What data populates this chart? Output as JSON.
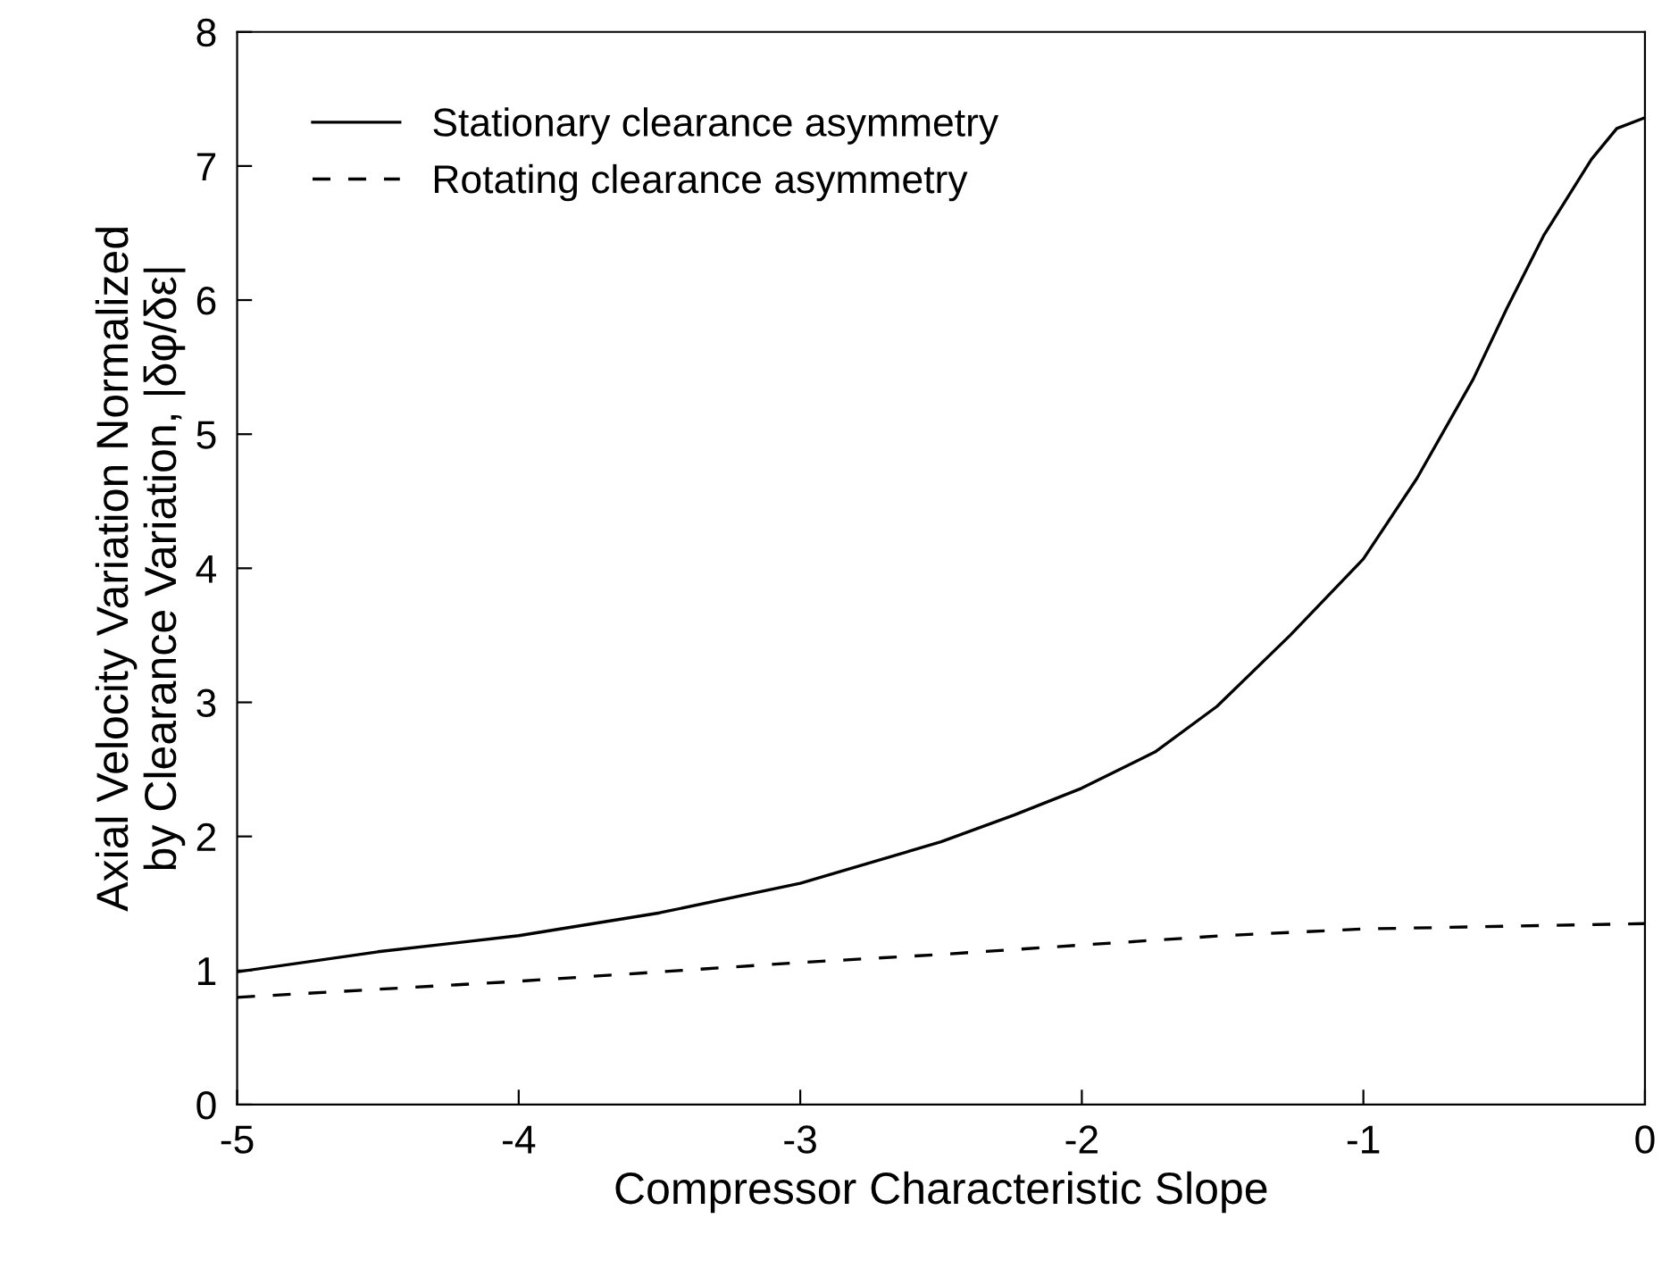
{
  "chart_data": {
    "type": "line",
    "xlabel": "Compressor Characteristic Slope",
    "ylabel": "Axial Velocity Variation Normalized\nby Clearance Variation, |δφ/δε|",
    "xlim": [
      -5,
      0
    ],
    "ylim": [
      0,
      8
    ],
    "xticks": [
      -5,
      -4,
      -3,
      -2,
      -1,
      0
    ],
    "yticks": [
      0,
      1,
      2,
      3,
      4,
      5,
      6,
      7,
      8
    ],
    "grid": false,
    "legend": "top left",
    "marker": "none",
    "series": [
      {
        "name": "Stationary clearance asymmetry",
        "color": "#000000",
        "line_style": "solid",
        "x": [
          -5,
          -4.5,
          -4,
          -3.5,
          -3,
          -2.5,
          -2.24,
          -2,
          -1.74,
          -1.52,
          -1.26,
          -1,
          -0.81,
          -0.61,
          -0.49,
          -0.36,
          -0.19,
          -0.1,
          0
        ],
        "values": [
          0.99,
          1.14,
          1.26,
          1.43,
          1.65,
          1.96,
          2.16,
          2.36,
          2.63,
          2.97,
          3.5,
          4.07,
          4.67,
          5.41,
          5.94,
          6.48,
          7.05,
          7.28,
          7.36
        ]
      },
      {
        "name": "Rotating clearance asymmetry",
        "color": "#000000",
        "line_style": "dashed",
        "x": [
          -5,
          -4.5,
          -4,
          -3.5,
          -3,
          -2.5,
          -2,
          -1.5,
          -1,
          -0.5,
          0
        ],
        "values": [
          0.8,
          0.86,
          0.92,
          0.99,
          1.06,
          1.12,
          1.19,
          1.26,
          1.31,
          1.33,
          1.35
        ]
      }
    ]
  }
}
